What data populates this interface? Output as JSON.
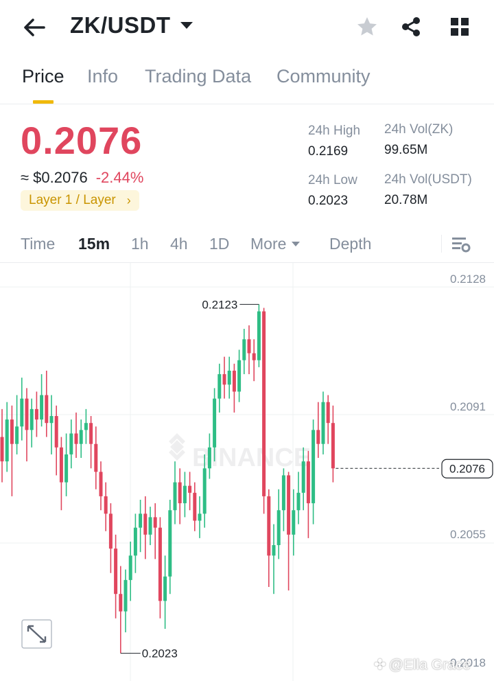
{
  "header": {
    "pair": "ZK/USDT",
    "icons": [
      "back-arrow-icon",
      "favorite-star-icon",
      "share-icon",
      "grid-menu-icon"
    ]
  },
  "tabs": [
    "Price",
    "Info",
    "Trading Data",
    "Community"
  ],
  "active_tab": "Price",
  "ticker": {
    "last_price": "0.2076",
    "usd_price": "≈ $0.2076",
    "change_pct": "-2.44%",
    "tag": "Layer 1 / Layer",
    "high_label": "24h High",
    "high_value": "0.2169",
    "low_label": "24h Low",
    "low_value": "0.2023",
    "vol_base_label": "24h Vol(ZK)",
    "vol_base_value": "99.65M",
    "vol_quote_label": "24h Vol(USDT)",
    "vol_quote_value": "20.78M"
  },
  "intervals": [
    "Time",
    "15m",
    "1h",
    "4h",
    "1D",
    "More",
    "Depth"
  ],
  "active_interval": "15m",
  "colors": {
    "up": "#2ebd85",
    "down": "#e0465e",
    "accent": "#f0b90b",
    "muted": "#848e9c"
  },
  "chart_data": {
    "type": "candlestick",
    "y_ticks": [
      "0.2128",
      "0.2091",
      "0.2055",
      "0.2018"
    ],
    "ylim": [
      0.2018,
      0.2128
    ],
    "current_price_label": "0.2076",
    "high_marker": "0.2123",
    "low_marker": "0.2023",
    "background_watermark": "BINANCE",
    "candles": [
      [
        0.2085,
        0.2078,
        0.2093,
        0.2072
      ],
      [
        0.2078,
        0.209,
        0.2095,
        0.2075
      ],
      [
        0.209,
        0.2083,
        0.2094,
        0.2068
      ],
      [
        0.2083,
        0.2088,
        0.2097,
        0.208
      ],
      [
        0.2088,
        0.2096,
        0.2102,
        0.2084
      ],
      [
        0.2096,
        0.2087,
        0.2099,
        0.2078
      ],
      [
        0.2087,
        0.2093,
        0.2096,
        0.2082
      ],
      [
        0.2093,
        0.209,
        0.2098,
        0.2085
      ],
      [
        0.209,
        0.2097,
        0.2103,
        0.2088
      ],
      [
        0.2097,
        0.2089,
        0.2104,
        0.2085
      ],
      [
        0.2089,
        0.2091,
        0.2097,
        0.208
      ],
      [
        0.2091,
        0.2082,
        0.2094,
        0.2074
      ],
      [
        0.2082,
        0.2072,
        0.2085,
        0.2064
      ],
      [
        0.2072,
        0.208,
        0.2086,
        0.2068
      ],
      [
        0.208,
        0.2086,
        0.209,
        0.2076
      ],
      [
        0.2086,
        0.2083,
        0.2092,
        0.2079
      ],
      [
        0.2083,
        0.2087,
        0.209,
        0.2079
      ],
      [
        0.2087,
        0.2089,
        0.2093,
        0.2083
      ],
      [
        0.2089,
        0.2083,
        0.2091,
        0.2076
      ],
      [
        0.2083,
        0.2075,
        0.2088,
        0.207
      ],
      [
        0.2075,
        0.2068,
        0.2078,
        0.2064
      ],
      [
        0.2068,
        0.2063,
        0.2072,
        0.2058
      ],
      [
        0.2063,
        0.2053,
        0.2066,
        0.2046
      ],
      [
        0.2053,
        0.204,
        0.2057,
        0.2033
      ],
      [
        0.204,
        0.2035,
        0.2048,
        0.2023
      ],
      [
        0.2035,
        0.2044,
        0.2047,
        0.2029
      ],
      [
        0.2044,
        0.2051,
        0.2055,
        0.2038
      ],
      [
        0.2051,
        0.2059,
        0.2063,
        0.2046
      ],
      [
        0.2059,
        0.2063,
        0.2067,
        0.2052
      ],
      [
        0.2063,
        0.2057,
        0.2068,
        0.205
      ],
      [
        0.2057,
        0.2062,
        0.2065,
        0.2054
      ],
      [
        0.2062,
        0.2059,
        0.2066,
        0.205
      ],
      [
        0.2059,
        0.2038,
        0.2062,
        0.2033
      ],
      [
        0.2038,
        0.2045,
        0.2051,
        0.203
      ],
      [
        0.2045,
        0.2064,
        0.2067,
        0.204
      ],
      [
        0.2064,
        0.2072,
        0.2078,
        0.206
      ],
      [
        0.2072,
        0.2066,
        0.2076,
        0.206
      ],
      [
        0.2066,
        0.2071,
        0.2075,
        0.2062
      ],
      [
        0.2071,
        0.2069,
        0.2075,
        0.2064
      ],
      [
        0.2069,
        0.2061,
        0.2072,
        0.2058
      ],
      [
        0.2061,
        0.2063,
        0.2068,
        0.2056
      ],
      [
        0.2063,
        0.2076,
        0.208,
        0.2059
      ],
      [
        0.2076,
        0.2082,
        0.2086,
        0.2073
      ],
      [
        0.2082,
        0.2096,
        0.2099,
        0.2078
      ],
      [
        0.2096,
        0.2103,
        0.2106,
        0.2092
      ],
      [
        0.2103,
        0.21,
        0.2108,
        0.2096
      ],
      [
        0.21,
        0.2104,
        0.2108,
        0.2096
      ],
      [
        0.2104,
        0.2098,
        0.2106,
        0.2092
      ],
      [
        0.2098,
        0.2107,
        0.211,
        0.2095
      ],
      [
        0.2107,
        0.2113,
        0.2116,
        0.2103
      ],
      [
        0.2113,
        0.2109,
        0.2117,
        0.2103
      ],
      [
        0.2109,
        0.2107,
        0.2113,
        0.2101
      ],
      [
        0.2107,
        0.2121,
        0.2123,
        0.2105
      ],
      [
        0.2121,
        0.2068,
        0.2122,
        0.2063
      ],
      [
        0.2068,
        0.2051,
        0.207,
        0.2042
      ],
      [
        0.2051,
        0.2054,
        0.206,
        0.204
      ],
      [
        0.2054,
        0.2064,
        0.207,
        0.205
      ],
      [
        0.2064,
        0.2074,
        0.2076,
        0.2058
      ],
      [
        0.2074,
        0.2057,
        0.2075,
        0.2041
      ],
      [
        0.2057,
        0.2064,
        0.207,
        0.2051
      ],
      [
        0.2064,
        0.2069,
        0.2075,
        0.206
      ],
      [
        0.2069,
        0.2078,
        0.2082,
        0.2064
      ],
      [
        0.2078,
        0.2066,
        0.2081,
        0.2056
      ],
      [
        0.2066,
        0.2087,
        0.209,
        0.206
      ],
      [
        0.2087,
        0.2083,
        0.2095,
        0.2079
      ],
      [
        0.2083,
        0.2095,
        0.2098,
        0.208
      ],
      [
        0.2095,
        0.2089,
        0.2097,
        0.2083
      ],
      [
        0.2089,
        0.2076,
        0.2094,
        0.2072
      ]
    ]
  }
}
